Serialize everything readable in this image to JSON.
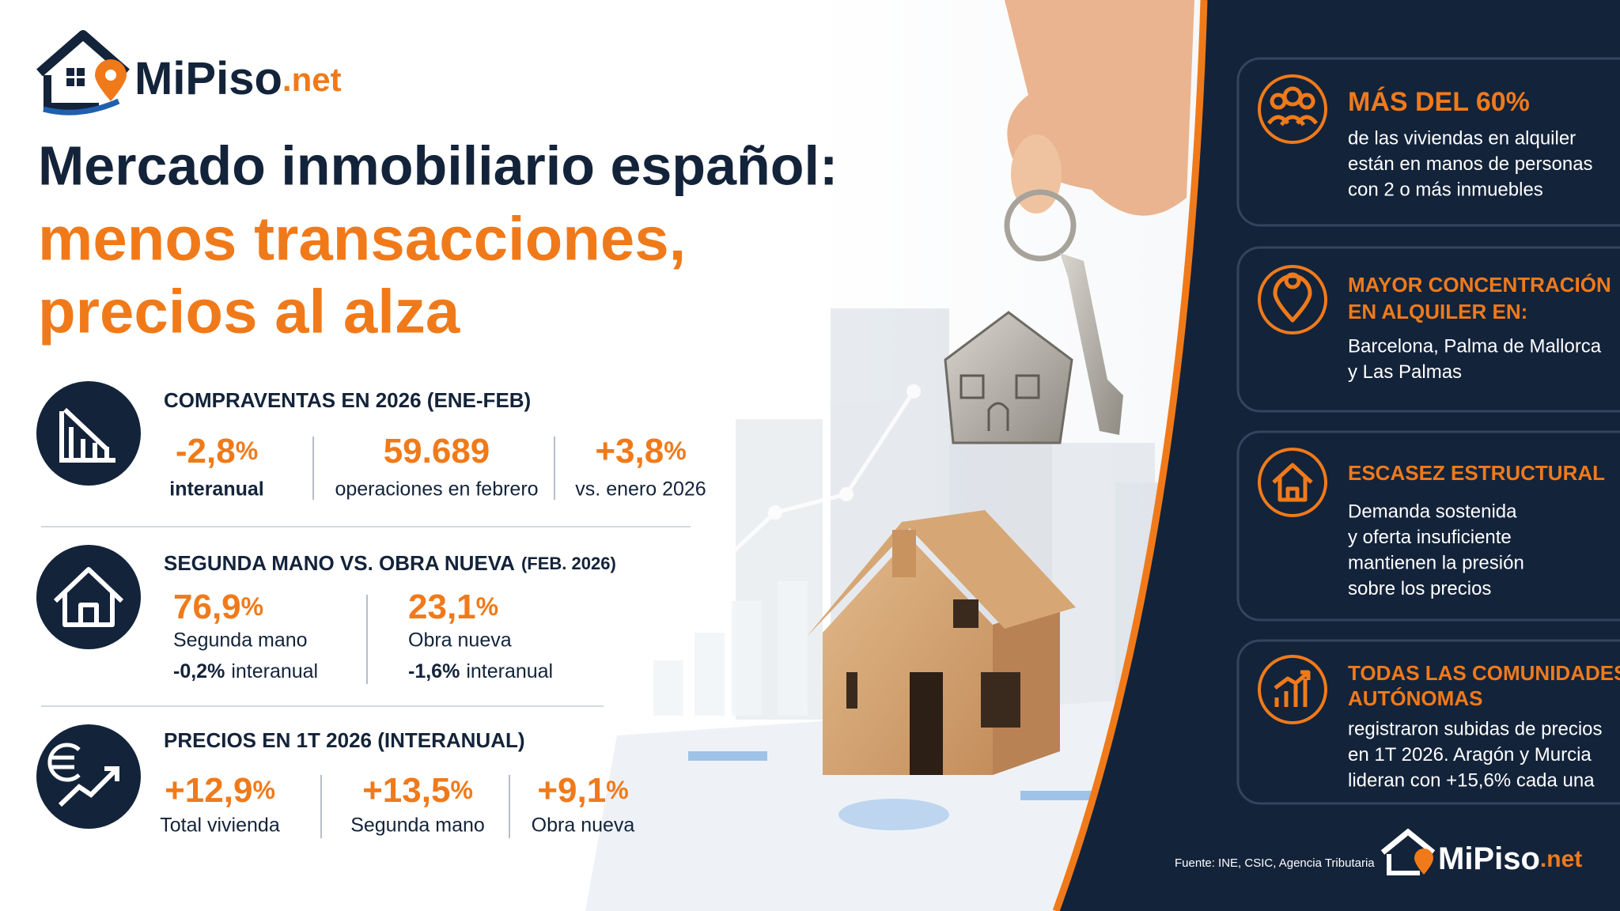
{
  "logo": {
    "name": "MiPiso",
    "suffix": ".net"
  },
  "header": {
    "title": "Mercado inmobiliario español:",
    "subtitle": [
      "menos transacciones,",
      "precios al alza"
    ]
  },
  "sections": [
    {
      "title": "COMPRAVENTAS EN 2026 (ENE-FEB)",
      "stats": [
        {
          "value": "-2,8",
          "unit": "%",
          "label": "interanual"
        },
        {
          "value": "59.689",
          "label": "operaciones en febrero"
        },
        {
          "value": "+3,8",
          "unit": "%",
          "label": "vs. enero 2026"
        }
      ]
    },
    {
      "title": "SEGUNDA MANO VS. OBRA NUEVA",
      "title_note": "(FEB. 2026)",
      "stats": [
        {
          "value": "76,9",
          "unit": "%",
          "label": "Segunda mano",
          "change": "-0,2%",
          "change_label": "interanual"
        },
        {
          "value": "23,1",
          "unit": "%",
          "label": "Obra nueva",
          "change": "-1,6%",
          "change_label": "interanual"
        }
      ]
    },
    {
      "title": "PRECIOS EN 1T 2026 (INTERANUAL)",
      "stats": [
        {
          "value": "+12,9",
          "unit": "%",
          "label": "Total vivienda"
        },
        {
          "value": "+13,5",
          "unit": "%",
          "label": "Segunda mano"
        },
        {
          "value": "+9,1",
          "unit": "%",
          "label": "Obra nueva"
        }
      ]
    }
  ],
  "highlights": [
    {
      "title": [
        "MÁS DEL 60%"
      ],
      "text": [
        "de las viviendas en alquiler",
        "están en manos de personas",
        "con 2 o más inmuebles"
      ]
    },
    {
      "title": [
        "MAYOR CONCENTRACIÓN",
        "EN ALQUILER EN:"
      ],
      "text": [
        "Barcelona, Palma de Mallorca",
        "y Las Palmas"
      ]
    },
    {
      "title": [
        "ESCASEZ ESTRUCTURAL"
      ],
      "text": [
        "Demanda sostenida",
        "y oferta insuficiente",
        "mantienen la presión",
        "sobre los precios"
      ]
    },
    {
      "title": [
        "TODAS LAS COMUNIDADES",
        "AUTÓNOMAS"
      ],
      "text": [
        "registraron subidas de precios",
        "en 1T 2026. Aragón y Murcia",
        "lideran con +15,6% cada una"
      ]
    }
  ],
  "source": "Fuente: INE, CSIC, Agencia Tributaria"
}
